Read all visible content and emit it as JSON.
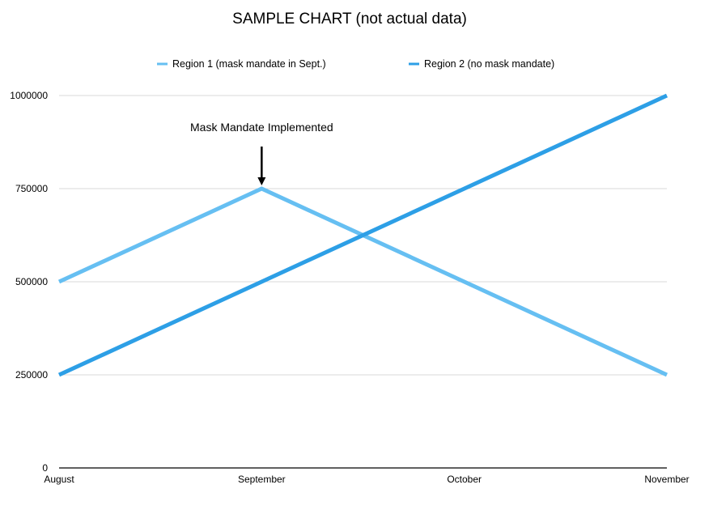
{
  "chart_data": {
    "type": "line",
    "title": "SAMPLE CHART (not actual data)",
    "categories": [
      "August",
      "September",
      "October",
      "November"
    ],
    "series": [
      {
        "name": "Region 1 (mask mandate in Sept.)",
        "color": "#66bff2",
        "values": [
          500000,
          750000,
          500000,
          250000
        ]
      },
      {
        "name": "Region 2 (no mask mandate)",
        "color": "#2d9fe6",
        "values": [
          250000,
          500000,
          750000,
          1000000
        ]
      }
    ],
    "yticks": [
      0,
      250000,
      500000,
      750000,
      1000000
    ],
    "ylim": [
      0,
      1000000
    ],
    "xlabel": "",
    "ylabel": "",
    "grid": true,
    "legend": "top-center",
    "annotations": [
      {
        "text": "Mask Mandate Implemented",
        "category": "September",
        "series": 0,
        "arrow": true
      }
    ]
  }
}
